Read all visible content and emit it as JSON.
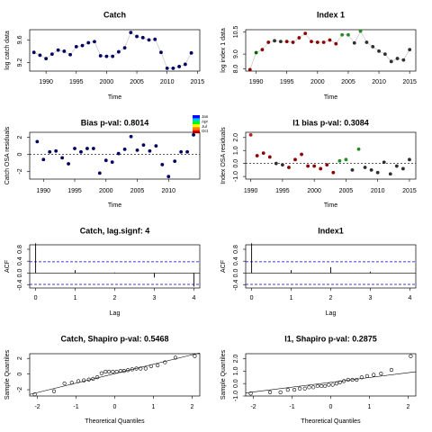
{
  "chart_data": [
    {
      "type": "line",
      "title": "Catch",
      "title_color": "#000000",
      "xlabel": "Time",
      "ylabel": "log catch data",
      "x": [
        1988,
        1989,
        1990,
        1991,
        1992,
        1993,
        1994,
        1995,
        1996,
        1997,
        1998,
        1999,
        2000,
        2001,
        2002,
        2003,
        2004,
        2005,
        2006,
        2007,
        2008,
        2009,
        2010,
        2011,
        2012,
        2013,
        2014
      ],
      "values": [
        9.38,
        9.33,
        9.27,
        9.35,
        9.42,
        9.4,
        9.34,
        9.48,
        9.5,
        9.55,
        9.57,
        9.32,
        9.31,
        9.31,
        9.39,
        9.46,
        9.73,
        9.66,
        9.64,
        9.6,
        9.61,
        9.38,
        9.1,
        9.1,
        9.13,
        9.17,
        9.37
      ],
      "color": "#000060",
      "xlim": [
        1987.3,
        2015.4
      ],
      "ylim": [
        9.05,
        9.78
      ],
      "xticks": [
        1990,
        1995,
        2000,
        2005,
        2010,
        2015
      ],
      "yticks": [
        9.2,
        9.6
      ]
    },
    {
      "type": "line",
      "title": "Index 1",
      "title_color": "#000000",
      "xlabel": "Time",
      "ylabel": "log index 1 data",
      "x": [
        1989,
        1990,
        1991,
        1992,
        1993,
        1994,
        1995,
        1996,
        1997,
        1998,
        1999,
        2000,
        2001,
        2002,
        2003,
        2004,
        2005,
        2006,
        2007,
        2008,
        2009,
        2010,
        2011,
        2012,
        2013,
        2014,
        2015
      ],
      "values": [
        7.95,
        9.1,
        9.3,
        9.8,
        9.9,
        9.85,
        9.85,
        9.8,
        10.1,
        10.4,
        9.85,
        9.8,
        9.8,
        9.95,
        9.7,
        10.3,
        10.3,
        9.75,
        10.55,
        9.8,
        9.5,
        9.2,
        9.0,
        8.5,
        8.7,
        8.6,
        9.3
      ],
      "colors": [
        "#8b0000",
        "#006400",
        "#8b0000",
        "#8b0000",
        "#2f2f2f",
        "#2f2f2f",
        "#8b0000",
        "#8b0000",
        "#8b0000",
        "#8b0000",
        "#8b0000",
        "#8b0000",
        "#8b0000",
        "#8b0000",
        "#8b0000",
        "#228b22",
        "#228b22",
        "#2f2f2f",
        "#228b22",
        "#2f2f2f",
        "#2f2f2f",
        "#2f2f2f",
        "#2f2f2f",
        "#2f2f2f",
        "#2f2f2f",
        "#2f2f2f",
        "#2f2f2f"
      ],
      "xlim": [
        1988.3,
        2016
      ],
      "ylim": [
        7.85,
        10.65
      ],
      "xticks": [
        1990,
        1995,
        2000,
        2005,
        2010,
        2015
      ],
      "yticks": [
        {
          "value": 8,
          "label": "8.0"
        },
        {
          "value": 9,
          "label": "9.0"
        },
        10.5
      ],
      "legend": {
        "labels": [
          "Jan",
          "Apr",
          "Jul",
          "Oct"
        ],
        "colors": [
          "#0000ff",
          "#00c0ff",
          "#00ff00",
          "#ffff00",
          "#ff8000",
          "#ff0000"
        ]
      }
    },
    {
      "type": "scatter",
      "title": "Bias p-val: 0.8014",
      "title_color": "#228b22",
      "xlabel": "Time",
      "ylabel": "Catch OSA residuals",
      "x": [
        1989,
        1990,
        1991,
        1992,
        1993,
        1994,
        1995,
        1996,
        1997,
        1998,
        1999,
        2000,
        2001,
        2002,
        2003,
        2004,
        2005,
        2006,
        2007,
        2008,
        2009,
        2010,
        2011,
        2012,
        2013,
        2014
      ],
      "values": [
        1.5,
        -0.6,
        0.3,
        0.4,
        -0.4,
        -1.1,
        0.7,
        0.3,
        0.7,
        0.7,
        -2.2,
        -0.7,
        -0.9,
        0.1,
        0.6,
        2.1,
        0.5,
        1.1,
        0.4,
        1.0,
        -1.2,
        -2.6,
        -0.8,
        0.3,
        0.3,
        2.3
      ],
      "color": "#000060",
      "hline": 0,
      "xlim": [
        1987.8,
        2015
      ],
      "ylim": [
        -2.9,
        2.6
      ],
      "xticks": [
        1990,
        1995,
        2000,
        2005,
        2010
      ],
      "yticks": [
        -2,
        0,
        2
      ]
    },
    {
      "type": "scatter",
      "title": "I1 bias p-val: 0.3084",
      "title_color": "#228b22",
      "xlabel": "Time",
      "ylabel": "Index OSA residuals",
      "x": [
        1990,
        1991,
        1992,
        1993,
        1994,
        1995,
        1996,
        1997,
        1998,
        1999,
        2000,
        2001,
        2002,
        2003,
        2004,
        2005,
        2006,
        2007,
        2008,
        2009,
        2010,
        2011,
        2012,
        2013,
        2014,
        2015
      ],
      "values": [
        2.2,
        0.6,
        0.8,
        0.5,
        0.0,
        -0.1,
        -0.3,
        0.3,
        0.7,
        -0.2,
        -0.2,
        -0.4,
        -0.1,
        -0.7,
        0.2,
        0.3,
        -0.5,
        1.1,
        -0.3,
        -0.5,
        -0.7,
        0.1,
        -0.8,
        -0.2,
        -0.4,
        0.3
      ],
      "colors": [
        "#b22222",
        "#8b0000",
        "#8b0000",
        "#8b0000",
        "#2f2f2f",
        "#2f2f2f",
        "#8b0000",
        "#8b0000",
        "#8b0000",
        "#8b0000",
        "#8b0000",
        "#8b0000",
        "#8b0000",
        "#8b0000",
        "#228b22",
        "#228b22",
        "#2f2f2f",
        "#228b22",
        "#2f2f2f",
        "#2f2f2f",
        "#2f2f2f",
        "#2f2f2f",
        "#2f2f2f",
        "#2f2f2f",
        "#2f2f2f",
        "#2f2f2f"
      ],
      "hline": 0,
      "xlim": [
        1989.2,
        2016
      ],
      "ylim": [
        -1.2,
        2.4
      ],
      "xticks": [
        1990,
        1995,
        2000,
        2005,
        2010,
        2015
      ],
      "yticks": [
        {
          "value": -1,
          "label": "-1.0"
        },
        {
          "value": 0,
          "label": "0.0"
        },
        {
          "value": 1,
          "label": "1.0"
        },
        {
          "value": 2,
          "label": "2.0"
        }
      ]
    },
    {
      "type": "bar",
      "title": "Catch, lag.signf: 4",
      "title_color": "#ff0000",
      "xlabel": "Lag",
      "ylabel": "ACF",
      "x": [
        0,
        1,
        2,
        3,
        4
      ],
      "values": [
        1.0,
        0.1,
        0.02,
        -0.15,
        -0.45
      ],
      "color": "#000000",
      "bounds": [
        0.38,
        -0.38
      ],
      "bounds_color": "#0000cd",
      "xlim": [
        -0.15,
        4.15
      ],
      "ylim": [
        -0.5,
        0.95
      ],
      "xticks": [
        0,
        1,
        2,
        3,
        4
      ],
      "yticks": [
        -0.4,
        {
          "value": 0,
          "label": "0.0"
        },
        0.4,
        0.8
      ]
    },
    {
      "type": "bar",
      "title": "Index1",
      "title_color": "#228b22",
      "xlabel": "Lag",
      "ylabel": "ACF",
      "x": [
        0,
        1,
        2,
        3
      ],
      "values": [
        1.0,
        0.1,
        0.2,
        0.05
      ],
      "color": "#000000",
      "bounds": [
        0.38,
        -0.38
      ],
      "bounds_color": "#0000cd",
      "xlim": [
        -0.15,
        4.15
      ],
      "ylim": [
        -0.5,
        0.95
      ],
      "xticks": [
        0,
        1,
        2,
        3,
        4
      ],
      "yticks": [
        -0.4,
        {
          "value": 0,
          "label": "0.0"
        },
        0.4,
        0.8
      ]
    },
    {
      "type": "scatter",
      "title": "Catch, Shapiro p-val: 0.5468",
      "title_color": "#228b22",
      "xlabel": "Theoretical Quantiles",
      "ylabel": "Sample Quantiles",
      "x": [
        -2.07,
        -1.57,
        -1.3,
        -1.11,
        -0.94,
        -0.8,
        -0.67,
        -0.56,
        -0.45,
        -0.34,
        -0.24,
        -0.15,
        -0.05,
        0.05,
        0.15,
        0.24,
        0.34,
        0.45,
        0.56,
        0.67,
        0.8,
        0.94,
        1.11,
        1.3,
        1.57,
        2.07
      ],
      "values": [
        -2.6,
        -2.2,
        -1.2,
        -1.1,
        -0.9,
        -0.8,
        -0.7,
        -0.6,
        -0.4,
        0.1,
        0.3,
        0.3,
        0.3,
        0.3,
        0.4,
        0.4,
        0.5,
        0.6,
        0.7,
        0.7,
        0.7,
        1.0,
        1.1,
        1.5,
        2.1,
        2.3
      ],
      "open": true,
      "color": "#000000",
      "ref_line": {
        "x": [
          -2.2,
          2.2
        ],
        "y": [
          -2.6,
          2.7
        ]
      },
      "xlim": [
        -2.2,
        2.2
      ],
      "ylim": [
        -2.8,
        2.6
      ],
      "xticks": [
        -2,
        -1,
        0,
        1,
        2
      ],
      "yticks": [
        -2,
        0,
        2
      ]
    },
    {
      "type": "scatter",
      "title": "I1, Shapiro p-val: 0.2875",
      "title_color": "#228b22",
      "xlabel": "Theoretical Quantiles",
      "ylabel": "Sample Quantiles",
      "x": [
        -2.07,
        -1.57,
        -1.3,
        -1.11,
        -0.94,
        -0.8,
        -0.67,
        -0.56,
        -0.45,
        -0.34,
        -0.24,
        -0.15,
        -0.05,
        0.05,
        0.15,
        0.24,
        0.34,
        0.45,
        0.56,
        0.67,
        0.8,
        0.94,
        1.11,
        1.3,
        1.57,
        2.07
      ],
      "values": [
        -0.8,
        -0.7,
        -0.7,
        -0.5,
        -0.5,
        -0.4,
        -0.4,
        -0.3,
        -0.3,
        -0.2,
        -0.2,
        -0.2,
        -0.1,
        -0.1,
        0.0,
        0.1,
        0.2,
        0.3,
        0.3,
        0.3,
        0.5,
        0.6,
        0.7,
        0.8,
        1.1,
        2.2
      ],
      "open": true,
      "color": "#000000",
      "ref_line": {
        "x": [
          -2.2,
          2.2
        ],
        "y": [
          -0.75,
          0.95
        ]
      },
      "xlim": [
        -2.2,
        2.2
      ],
      "ylim": [
        -1.0,
        2.4
      ],
      "xticks": [
        -2,
        -1,
        0,
        1,
        2
      ],
      "yticks": [
        {
          "value": -1,
          "label": "-1.0"
        },
        {
          "value": 0,
          "label": "0.0"
        },
        {
          "value": 1,
          "label": "1.0"
        },
        {
          "value": 2,
          "label": "2.0"
        }
      ]
    }
  ]
}
